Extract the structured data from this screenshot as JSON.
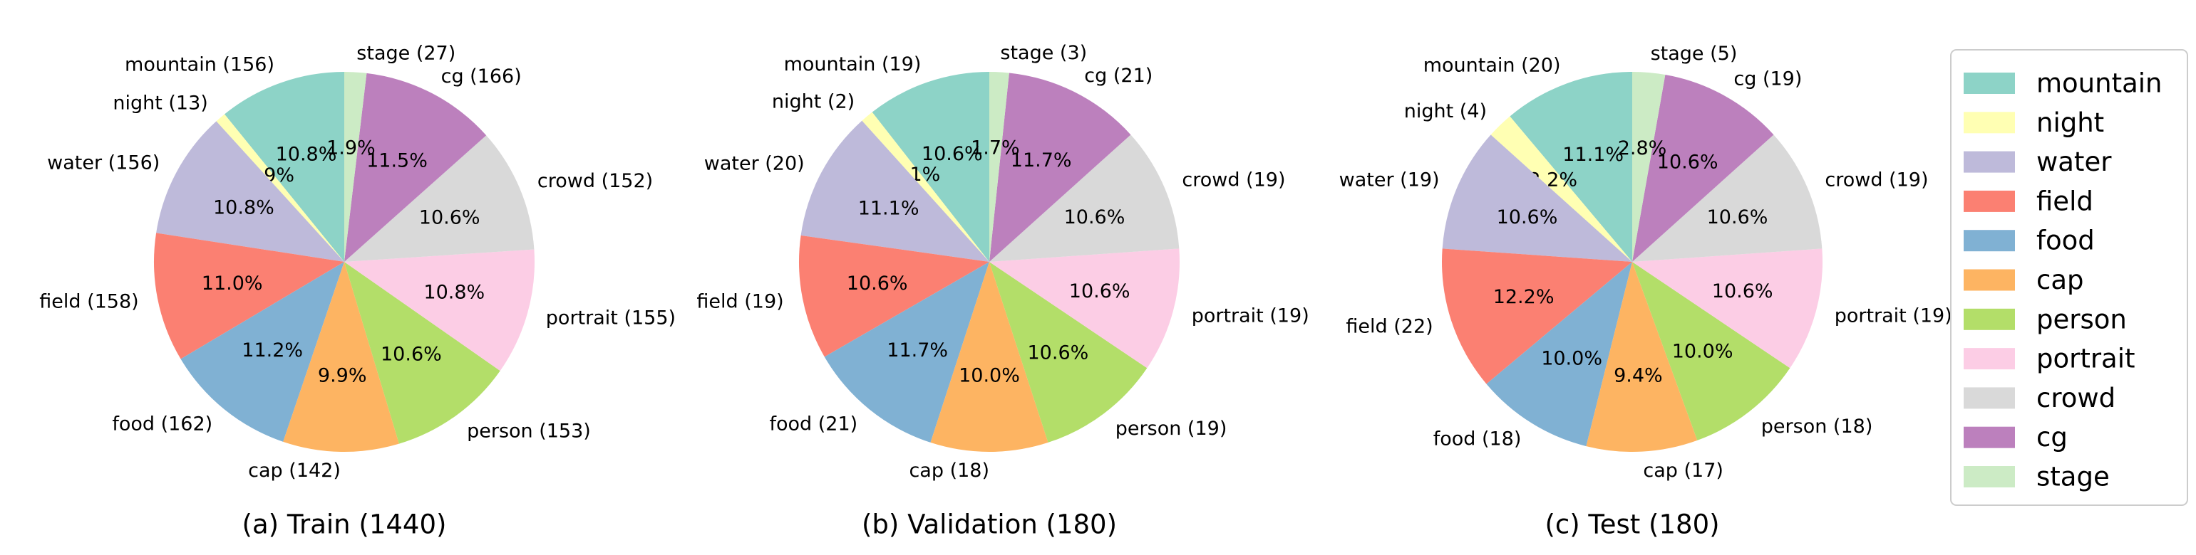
{
  "categories": [
    "mountain",
    "night",
    "water",
    "field",
    "food",
    "cap",
    "person",
    "portrait",
    "crowd",
    "cg",
    "stage"
  ],
  "colors": [
    "#8dd3c7",
    "#ffffb3",
    "#bebada",
    "#fb8072",
    "#80b1d3",
    "#fdb462",
    "#b3de69",
    "#fccde5",
    "#d9d9d9",
    "#bc80bd",
    "#ccebc5"
  ],
  "chart_data": [
    {
      "type": "pie",
      "title": "(a) Train (1440)",
      "categories": [
        "mountain",
        "night",
        "water",
        "field",
        "food",
        "cap",
        "person",
        "portrait",
        "crowd",
        "cg",
        "stage"
      ],
      "values": [
        156,
        13,
        156,
        158,
        162,
        142,
        153,
        155,
        152,
        166,
        27
      ],
      "labels": [
        "mountain (156)",
        "night (13)",
        "water (156)",
        "field (158)",
        "food (162)",
        "cap (142)",
        "person (153)",
        "portrait (155)",
        "crowd (152)",
        "cg (166)",
        "stage (27)"
      ],
      "percent_labels": [
        "10.8%",
        "0.9%",
        "10.8%",
        "11.0%",
        "11.2%",
        "9.9%",
        "10.6%",
        "10.8%",
        "10.6%",
        "11.5%",
        "1.9%"
      ]
    },
    {
      "type": "pie",
      "title": "(b) Validation (180)",
      "categories": [
        "mountain",
        "night",
        "water",
        "field",
        "food",
        "cap",
        "person",
        "portrait",
        "crowd",
        "cg",
        "stage"
      ],
      "values": [
        19,
        2,
        20,
        19,
        21,
        18,
        19,
        19,
        19,
        21,
        3
      ],
      "labels": [
        "mountain (19)",
        "night (2)",
        "water (20)",
        "field (19)",
        "food (21)",
        "cap (18)",
        "person (19)",
        "portrait (19)",
        "crowd (19)",
        "cg (21)",
        "stage (3)"
      ],
      "percent_labels": [
        "10.6%",
        "1.1%",
        "11.1%",
        "10.6%",
        "11.7%",
        "10.0%",
        "10.6%",
        "10.6%",
        "10.6%",
        "11.7%",
        "1.7%"
      ]
    },
    {
      "type": "pie",
      "title": "(c) Test (180)",
      "categories": [
        "mountain",
        "night",
        "water",
        "field",
        "food",
        "cap",
        "person",
        "portrait",
        "crowd",
        "cg",
        "stage"
      ],
      "values": [
        20,
        4,
        19,
        22,
        18,
        17,
        18,
        19,
        19,
        19,
        5
      ],
      "labels": [
        "mountain (20)",
        "night (4)",
        "water (19)",
        "field (22)",
        "food (18)",
        "cap (17)",
        "person (18)",
        "portrait (19)",
        "crowd (19)",
        "cg (19)",
        "stage (5)"
      ],
      "percent_labels": [
        "11.1%",
        "2.2%",
        "10.6%",
        "12.2%",
        "10.0%",
        "9.4%",
        "10.0%",
        "10.6%",
        "10.6%",
        "10.6%",
        "2.8%"
      ]
    }
  ],
  "legend": {
    "position": "right",
    "entries": [
      "mountain",
      "night",
      "water",
      "field",
      "food",
      "cap",
      "person",
      "portrait",
      "crowd",
      "cg",
      "stage"
    ]
  }
}
